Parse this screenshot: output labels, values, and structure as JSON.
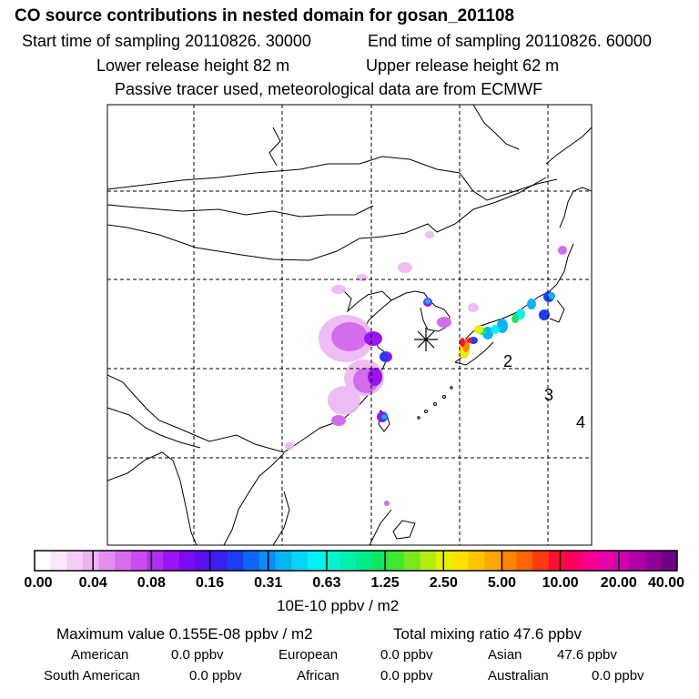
{
  "header": {
    "title": "CO  source contributions in nested domain for gosan_201108",
    "start_label": "Start time of sampling 20110826. 30000",
    "end_label": "End time of sampling 20110826. 60000",
    "lower_label": "Lower release height   82 m",
    "upper_label": "Upper release height   62 m",
    "tracer_label": "Passive tracer used, meteorological data are from ECMWF"
  },
  "map": {
    "markers": [
      "2",
      "3",
      "4"
    ]
  },
  "colorbar": {
    "ticks": [
      "0.00",
      "0.04",
      "0.08",
      "0.16",
      "0.31",
      "0.63",
      "1.25",
      "2.50",
      "5.00",
      "10.00",
      "20.00",
      "40.00"
    ],
    "unit": "10E-10 ppbv / m2",
    "colors": [
      "#ffffff",
      "#fbe6fb",
      "#f6cdf6",
      "#f0b2f4",
      "#e590f0",
      "#d86cee",
      "#c84cf0",
      "#b32cf2",
      "#9a14f4",
      "#7a0cf2",
      "#5a10f0",
      "#3a20f2",
      "#1e3cf4",
      "#1066f4",
      "#0a8ef4",
      "#08b4f4",
      "#06d6f4",
      "#00f2f2",
      "#00f4d4",
      "#00f0b0",
      "#00ec88",
      "#10e860",
      "#40e830",
      "#7ae81c",
      "#b4ec10",
      "#e8f000",
      "#ffe000",
      "#ffc400",
      "#ffa600",
      "#ff8600",
      "#ff6400",
      "#ff3a10",
      "#ff1030",
      "#ff0060",
      "#f8008c",
      "#e800a8",
      "#d000b0",
      "#b000a8",
      "#900098",
      "#700088"
    ]
  },
  "stats": {
    "max_label": "Maximum value  0.155E-08 ppbv / m2",
    "total_label": "Total mixing ratio       47.6 ppbv",
    "american_label": "American",
    "american_value": "0.0 ppbv",
    "european_label": "European",
    "european_value": "0.0 ppbv",
    "asian_label": "Asian",
    "asian_value": "47.6 ppbv",
    "south_american_label": "South American",
    "south_american_value": "0.0 ppbv",
    "african_label": "African",
    "african_value": "0.0 ppbv",
    "australian_label": "Australian",
    "australian_value": "0.0 ppbv"
  }
}
